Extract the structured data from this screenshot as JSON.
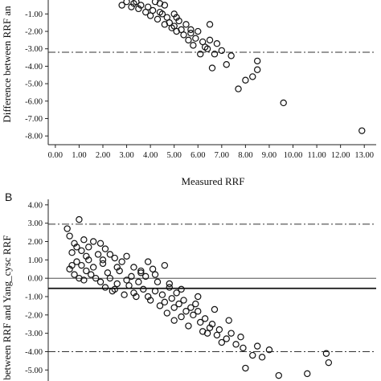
{
  "chart_data": [
    {
      "type": "scatter",
      "xlabel": "Measured RRF",
      "ylabel": "Difference between RRF an",
      "x_ticks": [
        "0.00",
        "1.00",
        "2.00",
        "3.00",
        "4.00",
        "5.00",
        "6.00",
        "7.00",
        "8.00",
        "9.00",
        "10.00",
        "11.00",
        "12.00",
        "13.00"
      ],
      "y_ticks": [
        "-1.00",
        "-2.00",
        "-3.00",
        "-4.00",
        "-5.00",
        "-6.00",
        "-7.00",
        "-8.00"
      ],
      "xlim": [
        -0.3,
        13.5
      ],
      "ylim": [
        -8.5,
        -0.2
      ],
      "ref_lines": [
        {
          "style": "dash-dot",
          "y": -3.2
        }
      ],
      "points": [
        [
          2.8,
          -0.5
        ],
        [
          3.0,
          -0.3
        ],
        [
          3.2,
          -0.6
        ],
        [
          3.3,
          -0.4
        ],
        [
          3.5,
          -0.7
        ],
        [
          3.6,
          -0.5
        ],
        [
          3.8,
          -0.9
        ],
        [
          3.9,
          -0.6
        ],
        [
          4.0,
          -1.1
        ],
        [
          4.1,
          -0.8
        ],
        [
          4.2,
          -0.3
        ],
        [
          4.3,
          -1.3
        ],
        [
          4.4,
          -0.9
        ],
        [
          4.5,
          -1.0
        ],
        [
          4.6,
          -1.6
        ],
        [
          4.6,
          -0.5
        ],
        [
          4.7,
          -1.2
        ],
        [
          4.8,
          -1.5
        ],
        [
          4.9,
          -1.8
        ],
        [
          5.0,
          -1.0
        ],
        [
          5.0,
          -1.7
        ],
        [
          5.1,
          -2.0
        ],
        [
          5.2,
          -1.4
        ],
        [
          5.3,
          -1.9
        ],
        [
          5.4,
          -2.2
        ],
        [
          5.5,
          -1.6
        ],
        [
          5.6,
          -2.5
        ],
        [
          5.7,
          -2.1
        ],
        [
          5.8,
          -2.8
        ],
        [
          5.9,
          -2.4
        ],
        [
          6.0,
          -2.0
        ],
        [
          6.1,
          -3.3
        ],
        [
          6.2,
          -2.6
        ],
        [
          6.3,
          -2.9
        ],
        [
          6.4,
          -3.0
        ],
        [
          6.5,
          -2.5
        ],
        [
          6.6,
          -4.1
        ],
        [
          6.7,
          -3.3
        ],
        [
          6.8,
          -2.7
        ],
        [
          7.0,
          -3.1
        ],
        [
          7.2,
          -3.9
        ],
        [
          7.4,
          -3.4
        ],
        [
          7.7,
          -5.3
        ],
        [
          8.0,
          -4.8
        ],
        [
          8.3,
          -4.6
        ],
        [
          8.5,
          -3.7
        ],
        [
          8.5,
          -4.2
        ],
        [
          9.6,
          -6.1
        ],
        [
          12.9,
          -7.7
        ],
        [
          4.4,
          -0.4
        ],
        [
          5.1,
          -1.2
        ],
        [
          6.5,
          -1.6
        ],
        [
          3.4,
          -0.3
        ],
        [
          5.7,
          -1.9
        ]
      ]
    },
    {
      "type": "scatter",
      "ylabel": "ce between RRF and Yang_cysc RRF",
      "y_ticks": [
        "4.00",
        "3.00",
        "2.00",
        "1.00",
        "0.00",
        "-1.00",
        "-2.00",
        "-3.00",
        "-4.00",
        "-5.00"
      ],
      "ylim": [
        -5.6,
        4.3
      ],
      "ref_lines": [
        {
          "style": "dash-dot",
          "y": 2.95
        },
        {
          "style": "solid-thin",
          "y": 0.0
        },
        {
          "style": "solid-thick",
          "y": -0.55
        },
        {
          "style": "dash-dot",
          "y": -4.0
        }
      ],
      "points": [
        [
          0.5,
          2.7
        ],
        [
          1.0,
          3.2
        ],
        [
          0.6,
          2.3
        ],
        [
          0.8,
          1.9
        ],
        [
          1.2,
          2.1
        ],
        [
          1.4,
          1.7
        ],
        [
          1.6,
          2.0
        ],
        [
          1.9,
          1.9
        ],
        [
          2.1,
          1.6
        ],
        [
          2.3,
          1.3
        ],
        [
          2.5,
          1.1
        ],
        [
          2.8,
          0.9
        ],
        [
          3.0,
          1.2
        ],
        [
          3.3,
          0.6
        ],
        [
          3.6,
          0.3
        ],
        [
          3.9,
          0.9
        ],
        [
          4.1,
          0.5
        ],
        [
          4.3,
          -0.2
        ],
        [
          4.6,
          0.7
        ],
        [
          4.8,
          -0.5
        ],
        [
          5.1,
          -0.8
        ],
        [
          5.4,
          -1.2
        ],
        [
          5.7,
          -1.6
        ],
        [
          6.0,
          -1.8
        ],
        [
          6.3,
          -2.2
        ],
        [
          6.6,
          -2.5
        ],
        [
          6.9,
          -2.8
        ],
        [
          7.2,
          -3.3
        ],
        [
          7.6,
          -3.6
        ],
        [
          7.9,
          -3.8
        ],
        [
          8.3,
          -4.2
        ],
        [
          8.7,
          -4.3
        ],
        [
          9.0,
          -3.9
        ],
        [
          9.4,
          -5.3
        ],
        [
          10.6,
          -5.2
        ],
        [
          11.4,
          -4.1
        ],
        [
          11.5,
          -4.6
        ],
        [
          0.7,
          1.4
        ],
        [
          0.9,
          0.9
        ],
        [
          1.1,
          0.7
        ],
        [
          1.3,
          0.4
        ],
        [
          1.5,
          0.2
        ],
        [
          1.7,
          0.0
        ],
        [
          1.9,
          -0.2
        ],
        [
          2.1,
          -0.5
        ],
        [
          2.4,
          -0.7
        ],
        [
          2.6,
          -0.3
        ],
        [
          2.9,
          -0.9
        ],
        [
          3.1,
          -0.4
        ],
        [
          3.4,
          -1.0
        ],
        [
          3.7,
          -0.6
        ],
        [
          4.0,
          -1.2
        ],
        [
          4.4,
          -1.5
        ],
        [
          4.7,
          -1.9
        ],
        [
          5.0,
          -2.3
        ],
        [
          5.3,
          -2.1
        ],
        [
          5.6,
          -2.6
        ],
        [
          6.2,
          -2.9
        ],
        [
          6.8,
          -3.1
        ],
        [
          7.4,
          -3.0
        ],
        [
          8.0,
          -4.9
        ],
        [
          0.6,
          0.5
        ],
        [
          0.8,
          0.2
        ],
        [
          1.0,
          0.0
        ],
        [
          1.2,
          -0.1
        ],
        [
          1.4,
          1.0
        ],
        [
          1.8,
          1.3
        ],
        [
          2.0,
          0.8
        ],
        [
          2.2,
          0.3
        ],
        [
          2.7,
          0.4
        ],
        [
          3.2,
          0.1
        ],
        [
          3.5,
          -0.2
        ],
        [
          3.8,
          0.1
        ],
        [
          4.2,
          -0.7
        ],
        [
          4.5,
          -0.9
        ],
        [
          4.9,
          -1.1
        ],
        [
          5.2,
          -1.4
        ],
        [
          5.5,
          -1.8
        ],
        [
          5.8,
          -2.0
        ],
        [
          6.1,
          -2.4
        ],
        [
          6.5,
          -2.7
        ],
        [
          7.0,
          -3.5
        ],
        [
          7.8,
          -3.2
        ],
        [
          0.7,
          0.7
        ],
        [
          1.1,
          1.5
        ],
        [
          1.6,
          0.6
        ],
        [
          2.3,
          0.0
        ],
        [
          2.5,
          -0.6
        ],
        [
          3.0,
          -0.1
        ],
        [
          3.3,
          -0.8
        ],
        [
          3.9,
          -1.0
        ],
        [
          4.6,
          -1.3
        ],
        [
          5.0,
          -1.6
        ],
        [
          5.9,
          -1.4
        ],
        [
          6.4,
          -3.0
        ],
        [
          8.5,
          -3.7
        ],
        [
          0.9,
          1.7
        ],
        [
          1.3,
          1.2
        ],
        [
          2.0,
          1.0
        ],
        [
          2.6,
          0.6
        ],
        [
          3.6,
          0.4
        ],
        [
          4.2,
          0.2
        ],
        [
          4.8,
          -0.3
        ],
        [
          5.3,
          -0.6
        ],
        [
          6.0,
          -1.0
        ],
        [
          6.7,
          -1.7
        ],
        [
          7.3,
          -2.3
        ]
      ]
    }
  ],
  "panel_b": {
    "letter": "B"
  }
}
